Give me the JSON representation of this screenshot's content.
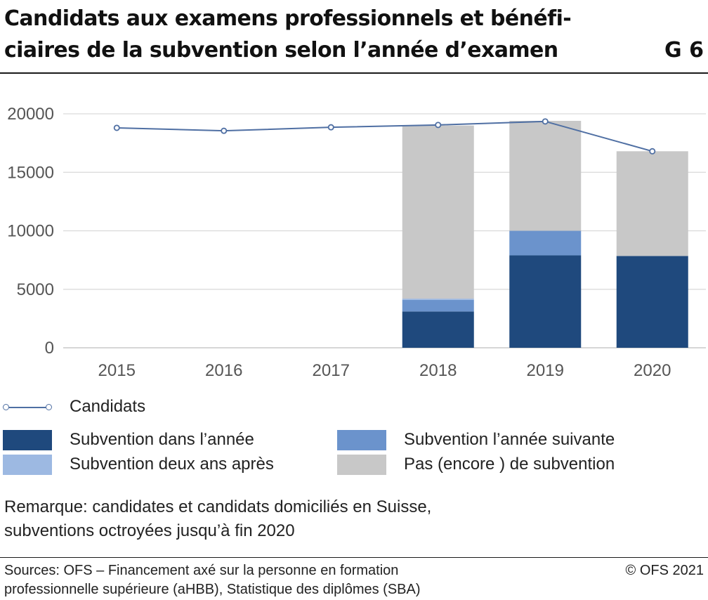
{
  "header": {
    "title_line1": "Candidats aux examens professionnels et bénéfi-",
    "title_line2": "ciaires de la subvention selon l’année d’examen",
    "figure_number": "G 6"
  },
  "chart_data": {
    "type": "bar",
    "stacked": true,
    "title": "Candidats aux examens professionnels et bénéficiaires de la subvention selon l’année d’examen",
    "categories": [
      "2015",
      "2016",
      "2017",
      "2018",
      "2019",
      "2020"
    ],
    "ylim": [
      0,
      20000
    ],
    "yticks": [
      0,
      5000,
      10000,
      15000,
      20000
    ],
    "ytick_labels": [
      "0",
      "5000",
      "10000",
      "15000",
      "20000"
    ],
    "grid": true,
    "series": [
      {
        "name": "Subvention dans l’année",
        "kind": "bar",
        "color": "#1f497d",
        "values": [
          null,
          null,
          null,
          3100,
          7900,
          7850
        ]
      },
      {
        "name": "Subvention l’année suivante",
        "kind": "bar",
        "color": "#6b93cc",
        "values": [
          null,
          null,
          null,
          1000,
          2100,
          0
        ]
      },
      {
        "name": "Subvention deux ans après",
        "kind": "bar",
        "color": "#9db9e2",
        "values": [
          null,
          null,
          null,
          100,
          0,
          0
        ]
      },
      {
        "name": "Pas (encore ) de subvention",
        "kind": "bar",
        "color": "#c8c8c8",
        "values": [
          null,
          null,
          null,
          14800,
          9400,
          8950
        ]
      },
      {
        "name": "Candidats",
        "kind": "line",
        "color": "#4f6fa3",
        "values": [
          18800,
          18550,
          18850,
          19050,
          19350,
          16800
        ]
      }
    ]
  },
  "legend": {
    "candidats": "Candidats",
    "subv_annee": "Subvention dans l’année",
    "subv_suivante": "Subvention l’année suivante",
    "subv_deux_ans": "Subvention deux ans après",
    "pas_subv": "Pas (encore ) de subvention"
  },
  "notes": {
    "remark_line1": "Remarque: candidates et candidats domiciliés en Suisse,",
    "remark_line2": "subventions octroyées jusqu’à fin 2020",
    "sources_line1": "Sources: OFS – Financement axé sur la personne en formation",
    "sources_line2": "professionnelle supérieure (aHBB), Statistique des diplômes (SBA)",
    "copyright": "© OFS 2021"
  }
}
